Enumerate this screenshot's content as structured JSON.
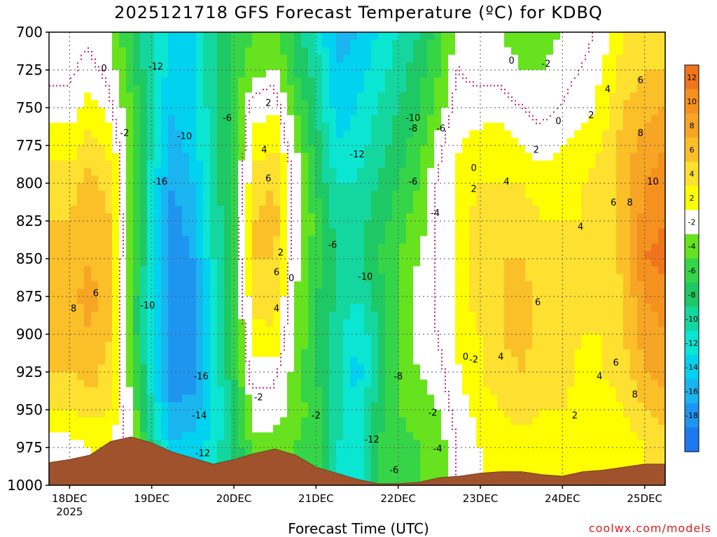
{
  "chart_data": {
    "type": "heatmap",
    "title": "2025121718 GFS Forecast Temperature (ºC) for KDBQ",
    "xlabel": "Forecast Time (UTC)",
    "ylabel": "",
    "x_ticks": [
      "18DEC",
      "19DEC",
      "20DEC",
      "21DEC",
      "22DEC",
      "23DEC",
      "24DEC",
      "25DEC"
    ],
    "x_tick_year": "2025",
    "y_ticks": [
      700,
      725,
      750,
      775,
      800,
      825,
      850,
      875,
      900,
      925,
      950,
      975,
      1000
    ],
    "ylim": [
      1000,
      700
    ],
    "colorbar": {
      "labels": [
        12,
        10,
        8,
        6,
        4,
        2,
        -2,
        -4,
        -6,
        -8,
        -10,
        -12,
        -14,
        -16,
        -18
      ],
      "bands": [
        {
          "lo": 12,
          "hi": 14,
          "color": "#f0741e"
        },
        {
          "lo": 10,
          "hi": 12,
          "color": "#f5911e"
        },
        {
          "lo": 8,
          "hi": 10,
          "color": "#f7a524"
        },
        {
          "lo": 6,
          "hi": 8,
          "color": "#fbbf28"
        },
        {
          "lo": 4,
          "hi": 6,
          "color": "#fde030"
        },
        {
          "lo": 2,
          "hi": 4,
          "color": "#fefe00"
        },
        {
          "lo": -2,
          "hi": 2,
          "color": "#ffffff"
        },
        {
          "lo": -4,
          "hi": -2,
          "color": "#66e31e"
        },
        {
          "lo": -6,
          "hi": -4,
          "color": "#36d548"
        },
        {
          "lo": -8,
          "hi": -6,
          "color": "#1ec864"
        },
        {
          "lo": -10,
          "hi": -8,
          "color": "#14d7a0"
        },
        {
          "lo": -12,
          "hi": -10,
          "color": "#0ae6d2"
        },
        {
          "lo": -14,
          "hi": -12,
          "color": "#00d2f0"
        },
        {
          "lo": -16,
          "hi": -14,
          "color": "#1ab4f0"
        },
        {
          "lo": -18,
          "hi": -16,
          "color": "#1e96f0"
        },
        {
          "lo": -20,
          "hi": -18,
          "color": "#1e78f0"
        }
      ]
    },
    "grid": true,
    "terrain_color": "#a0522d",
    "zero_contour_color": "#c81e78",
    "temperature_columns": [
      {
        "day": 0.0,
        "t": [
          -1,
          -1,
          1,
          3,
          5,
          6,
          7,
          7,
          7,
          6,
          4,
          1,
          1
        ]
      },
      {
        "day": 0.25,
        "t": [
          -1,
          1,
          3,
          5,
          7,
          8,
          8,
          9,
          8,
          7,
          5,
          2,
          2
        ]
      },
      {
        "day": 0.5,
        "t": [
          -2,
          -1,
          1,
          3,
          5,
          6,
          6,
          6,
          6,
          5,
          4,
          2,
          2
        ]
      },
      {
        "day": 0.75,
        "t": [
          -6,
          -5,
          -4,
          -3,
          -3,
          -3,
          -3,
          -4,
          -4,
          -3,
          -2,
          -1,
          -1
        ]
      },
      {
        "day": 1.0,
        "t": [
          -10,
          -10,
          -10,
          -10,
          -11,
          -11,
          -11,
          -12,
          -12,
          -11,
          -10,
          -8,
          -8
        ]
      },
      {
        "day": 1.25,
        "t": [
          -13,
          -13,
          -14,
          -15,
          -16,
          -17,
          -17,
          -18,
          -18,
          -17,
          -16,
          -14,
          -14
        ]
      },
      {
        "day": 1.5,
        "t": [
          -12,
          -12,
          -12,
          -13,
          -14,
          -15,
          -16,
          -17,
          -17,
          -17,
          -15,
          -13,
          -13
        ]
      },
      {
        "day": 1.75,
        "t": [
          -9,
          -9,
          -9,
          -9,
          -9,
          -10,
          -10,
          -11,
          -12,
          -12,
          -12,
          -11,
          -11
        ]
      },
      {
        "day": 2.0,
        "t": [
          -5,
          -5,
          -6,
          -6,
          -5,
          -5,
          -5,
          -5,
          -6,
          -6,
          -7,
          -8,
          -8
        ]
      },
      {
        "day": 2.25,
        "t": [
          -4,
          -3,
          1,
          3,
          5,
          6,
          6,
          5,
          3,
          1,
          -1,
          -3,
          -3
        ]
      },
      {
        "day": 2.5,
        "t": [
          -3,
          -2,
          2,
          4,
          6,
          7,
          6,
          5,
          4,
          1,
          -1,
          -3,
          -3
        ]
      },
      {
        "day": 2.75,
        "t": [
          -7,
          -6,
          -4,
          -2,
          0,
          0,
          -1,
          -2,
          -2,
          -3,
          -3,
          -4,
          -4
        ]
      },
      {
        "day": 3.0,
        "t": [
          -10,
          -9,
          -8,
          -7,
          -6,
          -5,
          -5,
          -6,
          -6,
          -6,
          -5,
          -5,
          -5
        ]
      },
      {
        "day": 3.25,
        "t": [
          -15,
          -14,
          -13,
          -12,
          -10,
          -9,
          -8,
          -8,
          -9,
          -9,
          -9,
          -10,
          -10
        ]
      },
      {
        "day": 3.5,
        "t": [
          -14,
          -13,
          -12,
          -11,
          -10,
          -9,
          -9,
          -10,
          -12,
          -13,
          -12,
          -11,
          -11
        ]
      },
      {
        "day": 3.75,
        "t": [
          -12,
          -11,
          -10,
          -9,
          -8,
          -7,
          -6,
          -7,
          -8,
          -8,
          -7,
          -6,
          -6
        ]
      },
      {
        "day": 4.0,
        "t": [
          -10,
          -9,
          -8,
          -7,
          -6,
          -5,
          -4,
          -4,
          -4,
          -4,
          -4,
          -5,
          -5
        ]
      },
      {
        "day": 4.25,
        "t": [
          -8,
          -7,
          -6,
          -5,
          -4,
          -3,
          -2,
          -1,
          -1,
          -2,
          -3,
          -4,
          -4
        ]
      },
      {
        "day": 4.5,
        "t": [
          -5,
          -4,
          -3,
          -1,
          0,
          0,
          0,
          0,
          0,
          -1,
          -2,
          -3,
          -3
        ]
      },
      {
        "day": 4.75,
        "t": [
          -1,
          0,
          1,
          2,
          3,
          3,
          3,
          3,
          3,
          2,
          1,
          0,
          0
        ]
      },
      {
        "day": 5.0,
        "t": [
          -2,
          -1,
          1,
          3,
          4,
          5,
          5,
          5,
          4,
          4,
          3,
          2,
          2
        ]
      },
      {
        "day": 5.25,
        "t": [
          -2,
          -1,
          1,
          3,
          4,
          5,
          6,
          6,
          6,
          5,
          4,
          3,
          3
        ]
      },
      {
        "day": 5.5,
        "t": [
          -3,
          -2,
          0,
          2,
          4,
          5,
          6,
          7,
          7,
          6,
          5,
          3,
          3
        ]
      },
      {
        "day": 5.75,
        "t": [
          -3,
          -2,
          -1,
          1,
          3,
          4,
          5,
          5,
          5,
          5,
          4,
          2,
          2
        ]
      },
      {
        "day": 6.0,
        "t": [
          -2,
          -1,
          0,
          2,
          3,
          4,
          4,
          5,
          5,
          5,
          4,
          3,
          3
        ]
      },
      {
        "day": 6.25,
        "t": [
          -2,
          0,
          1,
          3,
          4,
          4,
          4,
          4,
          4,
          3,
          3,
          2,
          2
        ]
      },
      {
        "day": 6.5,
        "t": [
          1,
          2,
          3,
          4,
          5,
          5,
          4,
          4,
          4,
          4,
          3,
          2,
          2
        ]
      },
      {
        "day": 6.75,
        "t": [
          4,
          5,
          6,
          7,
          7,
          7,
          7,
          6,
          6,
          5,
          4,
          3,
          3
        ]
      },
      {
        "day": 7.0,
        "t": [
          5,
          6,
          7,
          9,
          10,
          11,
          12,
          10,
          9,
          8,
          6,
          4,
          4
        ]
      },
      {
        "day": 7.25,
        "t": [
          5,
          6,
          8,
          10,
          11,
          12,
          13,
          11,
          10,
          9,
          7,
          5,
          5
        ]
      }
    ],
    "terrain_pressure": [
      {
        "day": -0.25,
        "p": 985
      },
      {
        "day": 0.0,
        "p": 983
      },
      {
        "day": 0.25,
        "p": 980
      },
      {
        "day": 0.5,
        "p": 971
      },
      {
        "day": 0.75,
        "p": 968
      },
      {
        "day": 1.0,
        "p": 972
      },
      {
        "day": 1.25,
        "p": 978
      },
      {
        "day": 1.5,
        "p": 982
      },
      {
        "day": 1.75,
        "p": 986
      },
      {
        "day": 2.0,
        "p": 983
      },
      {
        "day": 2.25,
        "p": 979
      },
      {
        "day": 2.5,
        "p": 976
      },
      {
        "day": 2.75,
        "p": 980
      },
      {
        "day": 3.0,
        "p": 988
      },
      {
        "day": 3.25,
        "p": 992
      },
      {
        "day": 3.5,
        "p": 996
      },
      {
        "day": 3.75,
        "p": 999
      },
      {
        "day": 4.0,
        "p": 999
      },
      {
        "day": 4.25,
        "p": 998
      },
      {
        "day": 4.5,
        "p": 995
      },
      {
        "day": 4.75,
        "p": 994
      },
      {
        "day": 5.0,
        "p": 992
      },
      {
        "day": 5.25,
        "p": 991
      },
      {
        "day": 5.5,
        "p": 991
      },
      {
        "day": 5.75,
        "p": 993
      },
      {
        "day": 6.0,
        "p": 994
      },
      {
        "day": 6.25,
        "p": 991
      },
      {
        "day": 6.5,
        "p": 990
      },
      {
        "day": 6.75,
        "p": 988
      },
      {
        "day": 7.0,
        "p": 986
      },
      {
        "day": 7.25,
        "p": 986
      },
      {
        "day": 7.5,
        "p": 986
      }
    ],
    "contour_labels": [
      {
        "text": "0",
        "day": 0.42,
        "p": 724
      },
      {
        "text": "-12",
        "day": 1.05,
        "p": 723
      },
      {
        "text": "-2",
        "day": 0.67,
        "p": 767
      },
      {
        "text": "-10",
        "day": 1.4,
        "p": 769
      },
      {
        "text": "-6",
        "day": 1.92,
        "p": 757
      },
      {
        "text": "2",
        "day": 2.42,
        "p": 747
      },
      {
        "text": "4",
        "day": 2.37,
        "p": 778
      },
      {
        "text": "6",
        "day": 2.42,
        "p": 797
      },
      {
        "text": "-10",
        "day": 4.18,
        "p": 757
      },
      {
        "text": "-8",
        "day": 4.18,
        "p": 764
      },
      {
        "text": "-6",
        "day": 4.52,
        "p": 764
      },
      {
        "text": "-12",
        "day": 3.5,
        "p": 781
      },
      {
        "text": "0",
        "day": 5.38,
        "p": 719
      },
      {
        "text": "-2",
        "day": 5.8,
        "p": 721
      },
      {
        "text": "4",
        "day": 6.55,
        "p": 738
      },
      {
        "text": "6",
        "day": 6.95,
        "p": 732
      },
      {
        "text": "0",
        "day": 5.95,
        "p": 759
      },
      {
        "text": "2",
        "day": 6.35,
        "p": 755
      },
      {
        "text": "2",
        "day": 5.68,
        "p": 778
      },
      {
        "text": "8",
        "day": 6.95,
        "p": 767
      },
      {
        "text": "0",
        "day": 4.92,
        "p": 790
      },
      {
        "text": "10",
        "day": 7.1,
        "p": 799
      },
      {
        "text": "-16",
        "day": 1.1,
        "p": 799
      },
      {
        "text": "-6",
        "day": 4.18,
        "p": 799
      },
      {
        "text": "2",
        "day": 4.92,
        "p": 804
      },
      {
        "text": "4",
        "day": 5.32,
        "p": 799
      },
      {
        "text": "-4",
        "day": 4.45,
        "p": 820
      },
      {
        "text": "6",
        "day": 6.62,
        "p": 813
      },
      {
        "text": "8",
        "day": 6.82,
        "p": 813
      },
      {
        "text": "4",
        "day": 6.22,
        "p": 829
      },
      {
        "text": "-6",
        "day": 3.2,
        "p": 841
      },
      {
        "text": "2",
        "day": 2.57,
        "p": 846
      },
      {
        "text": "6",
        "day": 2.52,
        "p": 859
      },
      {
        "text": "0",
        "day": 2.7,
        "p": 863
      },
      {
        "text": "-10",
        "day": 3.6,
        "p": 862
      },
      {
        "text": "6",
        "day": 0.32,
        "p": 873
      },
      {
        "text": "8",
        "day": 0.05,
        "p": 883
      },
      {
        "text": "-10",
        "day": 0.95,
        "p": 881
      },
      {
        "text": "4",
        "day": 2.52,
        "p": 883
      },
      {
        "text": "6",
        "day": 5.7,
        "p": 879
      },
      {
        "text": "0",
        "day": 4.82,
        "p": 915
      },
      {
        "text": "-2",
        "day": 4.92,
        "p": 917
      },
      {
        "text": "4",
        "day": 5.25,
        "p": 915
      },
      {
        "text": "6",
        "day": 6.65,
        "p": 919
      },
      {
        "text": "-16",
        "day": 1.6,
        "p": 928
      },
      {
        "text": "-8",
        "day": 4.0,
        "p": 928
      },
      {
        "text": "-2",
        "day": 2.3,
        "p": 942
      },
      {
        "text": "4",
        "day": 6.45,
        "p": 928
      },
      {
        "text": "-2",
        "day": 4.42,
        "p": 952
      },
      {
        "text": "8",
        "day": 6.88,
        "p": 940
      },
      {
        "text": "-2",
        "day": 3.0,
        "p": 954
      },
      {
        "text": "-14",
        "day": 1.58,
        "p": 954
      },
      {
        "text": "2",
        "day": 6.15,
        "p": 954
      },
      {
        "text": "-12",
        "day": 3.68,
        "p": 970
      },
      {
        "text": "-4",
        "day": 4.48,
        "p": 976
      },
      {
        "text": "-12",
        "day": 1.62,
        "p": 979
      },
      {
        "text": "-6",
        "day": 3.95,
        "p": 990
      }
    ]
  },
  "credit": "coolwx.com/models"
}
